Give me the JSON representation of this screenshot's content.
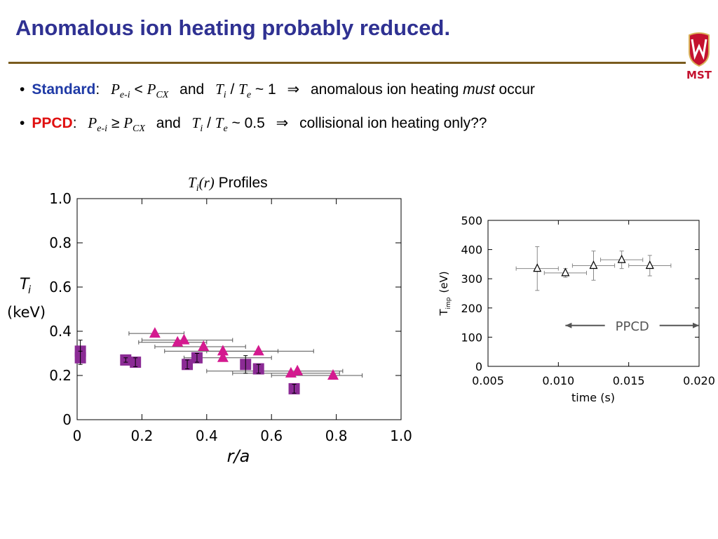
{
  "slide": {
    "title": "Anomalous ion heating probably reduced.",
    "logo_text": "MST",
    "bullets": [
      {
        "keyword": "Standard",
        "colon": ":",
        "p1": "P",
        "p1_sub": "e-i",
        "rel": "<",
        "p2": "P",
        "p2_sub": "CX",
        "and": "and",
        "t1": "T",
        "t1_sub": "i",
        "slash": "/",
        "t2": "T",
        "t2_sub": "e",
        "ratio": "~ 1",
        "arrow": "⇒",
        "text_before": "anomalous ion heating",
        "emph": "must",
        "text_after": "occur"
      },
      {
        "keyword": "PPCD",
        "colon": ":",
        "p1": "P",
        "p1_sub": "e-i",
        "rel": "≥",
        "p2": "P",
        "p2_sub": "CX",
        "and": "and",
        "t1": "T",
        "t1_sub": "i",
        "slash": "/",
        "t2": "T",
        "t2_sub": "e",
        "ratio": "~ 0.5",
        "arrow": "⇒",
        "text": "collisional ion heating only??"
      }
    ],
    "plot_title": {
      "t": "T",
      "t_sub": "i",
      "paren": "(r)",
      "rest": "Profiles"
    },
    "colors": {
      "title": "#2f3192",
      "standard": "#1f3aa6",
      "ppcd": "#e01010",
      "rule": "#7a5c1e",
      "squares": "#8b2b95",
      "triangles": "#d41a8f"
    }
  },
  "chart_data": [
    {
      "type": "scatter",
      "title": "",
      "xlabel": "r/a",
      "ylabel_symbol": "T",
      "ylabel_sub": "i",
      "ylabel_unit": "(keV)",
      "xlim": [
        0,
        1.0
      ],
      "ylim": [
        0,
        1.0
      ],
      "x_ticks": [
        "0",
        "0.2",
        "0.4",
        "0.6",
        "0.8",
        "1.0"
      ],
      "y_ticks": [
        "0",
        "0.2",
        "0.4",
        "0.6",
        "0.8",
        "1.0"
      ],
      "series": [
        {
          "marker": "square",
          "points": [
            {
              "x": 0.01,
              "y": 0.31,
              "yerr": 0.05
            },
            {
              "x": 0.01,
              "y": 0.28,
              "yerr": 0.03
            },
            {
              "x": 0.15,
              "y": 0.27,
              "yerr": 0.01
            },
            {
              "x": 0.18,
              "y": 0.26,
              "yerr": 0.02
            },
            {
              "x": 0.34,
              "y": 0.25,
              "yerr": 0.02
            },
            {
              "x": 0.37,
              "y": 0.28,
              "yerr": 0.02
            },
            {
              "x": 0.52,
              "y": 0.25,
              "yerr": 0.04
            },
            {
              "x": 0.56,
              "y": 0.23,
              "yerr": 0.02
            },
            {
              "x": 0.67,
              "y": 0.14,
              "yerr": 0.02
            }
          ]
        },
        {
          "marker": "triangle",
          "points": [
            {
              "x": 0.24,
              "y": 0.39,
              "xmin": 0.16,
              "xmax": 0.33
            },
            {
              "x": 0.31,
              "y": 0.35,
              "xmin": 0.19,
              "xmax": 0.4
            },
            {
              "x": 0.33,
              "y": 0.36,
              "xmin": 0.2,
              "xmax": 0.48
            },
            {
              "x": 0.39,
              "y": 0.33,
              "xmin": 0.24,
              "xmax": 0.52
            },
            {
              "x": 0.45,
              "y": 0.28,
              "xmin": 0.33,
              "xmax": 0.6
            },
            {
              "x": 0.45,
              "y": 0.31,
              "xmin": 0.27,
              "xmax": 0.62
            },
            {
              "x": 0.56,
              "y": 0.31,
              "xmin": 0.4,
              "xmax": 0.73
            },
            {
              "x": 0.66,
              "y": 0.21,
              "xmin": 0.48,
              "xmax": 0.81
            },
            {
              "x": 0.68,
              "y": 0.22,
              "xmin": 0.4,
              "xmax": 0.82
            },
            {
              "x": 0.79,
              "y": 0.2,
              "xmin": 0.6,
              "xmax": 0.88
            }
          ]
        }
      ]
    },
    {
      "type": "scatter",
      "title": "",
      "xlabel": "time (s)",
      "ylabel": "T",
      "ylabel_sub": "imp",
      "ylabel_unit": "(eV)",
      "xlim": [
        0.005,
        0.02
      ],
      "ylim": [
        0,
        500
      ],
      "x_ticks": [
        "0.005",
        "0.010",
        "0.015",
        "0.020"
      ],
      "y_ticks": [
        "0",
        "100",
        "200",
        "300",
        "400",
        "500"
      ],
      "annotation": "PPCD",
      "annotation_span": [
        0.0105,
        0.02
      ],
      "series": [
        {
          "marker": "open-triangle",
          "points": [
            {
              "x": 0.0085,
              "y": 335,
              "xerr": 0.0015,
              "yerr": 75
            },
            {
              "x": 0.0105,
              "y": 320,
              "xerr": 0.0015,
              "yerr": 15
            },
            {
              "x": 0.0125,
              "y": 345,
              "xerr": 0.0015,
              "yerr": 50
            },
            {
              "x": 0.0145,
              "y": 365,
              "xerr": 0.0015,
              "yerr": 30
            },
            {
              "x": 0.0165,
              "y": 345,
              "xerr": 0.0015,
              "yerr": 35
            }
          ]
        }
      ]
    }
  ]
}
